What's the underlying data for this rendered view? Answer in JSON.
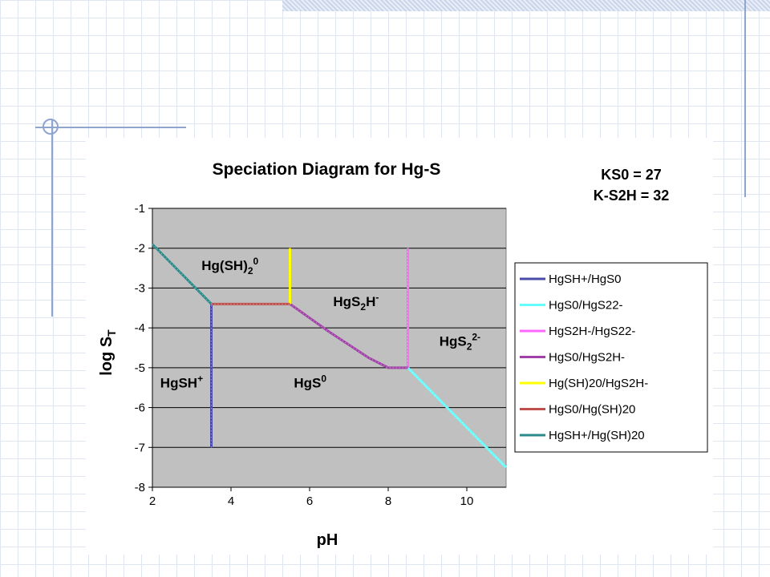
{
  "chart_data": {
    "type": "line",
    "title": "Speciation Diagram for Hg-S",
    "xlabel": "pH",
    "ylabel": "log S",
    "ylabel_sub": "T",
    "xlim": [
      2,
      11
    ],
    "ylim": [
      -8,
      -1
    ],
    "x_ticks": [
      2,
      4,
      6,
      8,
      10
    ],
    "y_ticks": [
      -1,
      -2,
      -3,
      -4,
      -5,
      -6,
      -7,
      -8
    ],
    "grid": "horizontal",
    "plot_background": "#c0c0c0",
    "legend_position": "right",
    "constants": [
      "KS0 = 27",
      "K-S2H = 32"
    ],
    "series": [
      {
        "name": "HgSH+/HgS0",
        "color": "#4a4aa8",
        "x": [
          3.5,
          3.5
        ],
        "y": [
          -7,
          -3.4
        ]
      },
      {
        "name": "HgS0/HgS22-",
        "color": "#66ffff",
        "x": [
          8.5,
          11
        ],
        "y": [
          -5,
          -7.5
        ]
      },
      {
        "name": "HgS2H-/HgS22-",
        "color": "#ff66ff",
        "x": [
          8.5,
          8.5
        ],
        "y": [
          -2,
          -5
        ]
      },
      {
        "name": "HgS0/HgS2H-",
        "color": "#a040a8",
        "x": [
          5.5,
          6.5,
          7.5,
          8.0,
          8.5
        ],
        "y": [
          -3.4,
          -4.1,
          -4.75,
          -5.0,
          -5.0
        ]
      },
      {
        "name": "Hg(SH)20/HgS2H-",
        "color": "#ffff00",
        "x": [
          5.5,
          5.5
        ],
        "y": [
          -2,
          -3.4
        ]
      },
      {
        "name": "HgS0/Hg(SH)20",
        "color": "#c0504d",
        "x": [
          3.5,
          5.5
        ],
        "y": [
          -3.4,
          -3.4
        ]
      },
      {
        "name": "HgSH+/Hg(SH)20",
        "color": "#2a8a8a",
        "x": [
          2,
          3.5
        ],
        "y": [
          -1.9,
          -3.4
        ]
      }
    ],
    "region_labels": [
      {
        "base": "Hg(SH)",
        "sub": "2",
        "sup": "0",
        "x": 3.25,
        "y": -2.55
      },
      {
        "base": "HgS",
        "sub": "2",
        "mid": "H",
        "sup": "-",
        "x": 6.6,
        "y": -3.45
      },
      {
        "base": "HgS",
        "sub": "2",
        "sup": "2-",
        "x": 9.3,
        "y": -4.45
      },
      {
        "base": "HgSH",
        "sub": "",
        "sup": "+",
        "x": 2.2,
        "y": -5.5
      },
      {
        "base": "HgS",
        "sub": "",
        "sup": "0",
        "x": 5.6,
        "y": -5.5
      }
    ]
  }
}
